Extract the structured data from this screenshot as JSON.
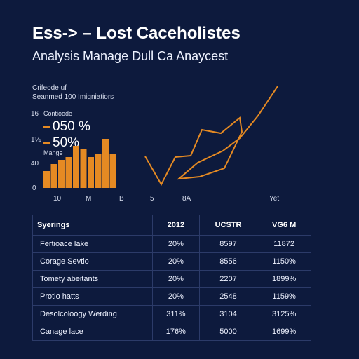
{
  "title": "Ess-> – Lost Caceholistes",
  "subtitle": "Analysis Manage Dull Ca Anaycest",
  "chart_note_1": "Crifeode uf",
  "chart_note_2": "Seanmed 100 Imigniatiors",
  "legend": {
    "label_1": "Contioode",
    "value_1": "050 %",
    "value_2": "50%",
    "label_2": "Mange"
  },
  "colors": {
    "background": "#0d1a3d",
    "bar": "#e58a23",
    "line": "#e58a23",
    "grid": "#2c3b69"
  },
  "chart_data": {
    "type": "bar",
    "y_ticks": [
      "16",
      "1¼",
      "40",
      "0"
    ],
    "x_ticks": [
      "10",
      "M",
      "B",
      "5",
      "8A"
    ],
    "x_end_label": "Yet",
    "values": [
      24,
      34,
      40,
      44,
      60,
      56,
      44,
      48,
      70,
      48
    ],
    "line_series": {
      "type": "line",
      "points": [
        [
          207,
          223
        ],
        [
          230,
          263
        ],
        [
          250,
          224
        ],
        [
          272,
          222
        ],
        [
          288,
          185
        ],
        [
          315,
          190
        ],
        [
          342,
          168
        ],
        [
          345,
          188
        ],
        [
          320,
          240
        ],
        [
          285,
          252
        ],
        [
          255,
          255
        ],
        [
          282,
          232
        ],
        [
          318,
          215
        ],
        [
          342,
          197
        ],
        [
          368,
          165
        ],
        [
          396,
          123
        ]
      ]
    }
  },
  "table": {
    "headers": [
      "Syerings",
      "2012",
      "UCSTR",
      "VG6 M"
    ],
    "rows": [
      [
        "Fertioace lake",
        "20%",
        "8597",
        "11872"
      ],
      [
        "Corage Sevtio",
        "20%",
        "8556",
        "1150%"
      ],
      [
        "Tomety abeitants",
        "20%",
        "2207",
        "1899%"
      ],
      [
        "Protio hatts",
        "20%",
        "2548",
        "1159%"
      ],
      [
        "Desolcoloogy Werding",
        "311%",
        "3104",
        "3125%"
      ],
      [
        "Canage lace",
        "176%",
        "5000",
        "1699%"
      ]
    ]
  }
}
